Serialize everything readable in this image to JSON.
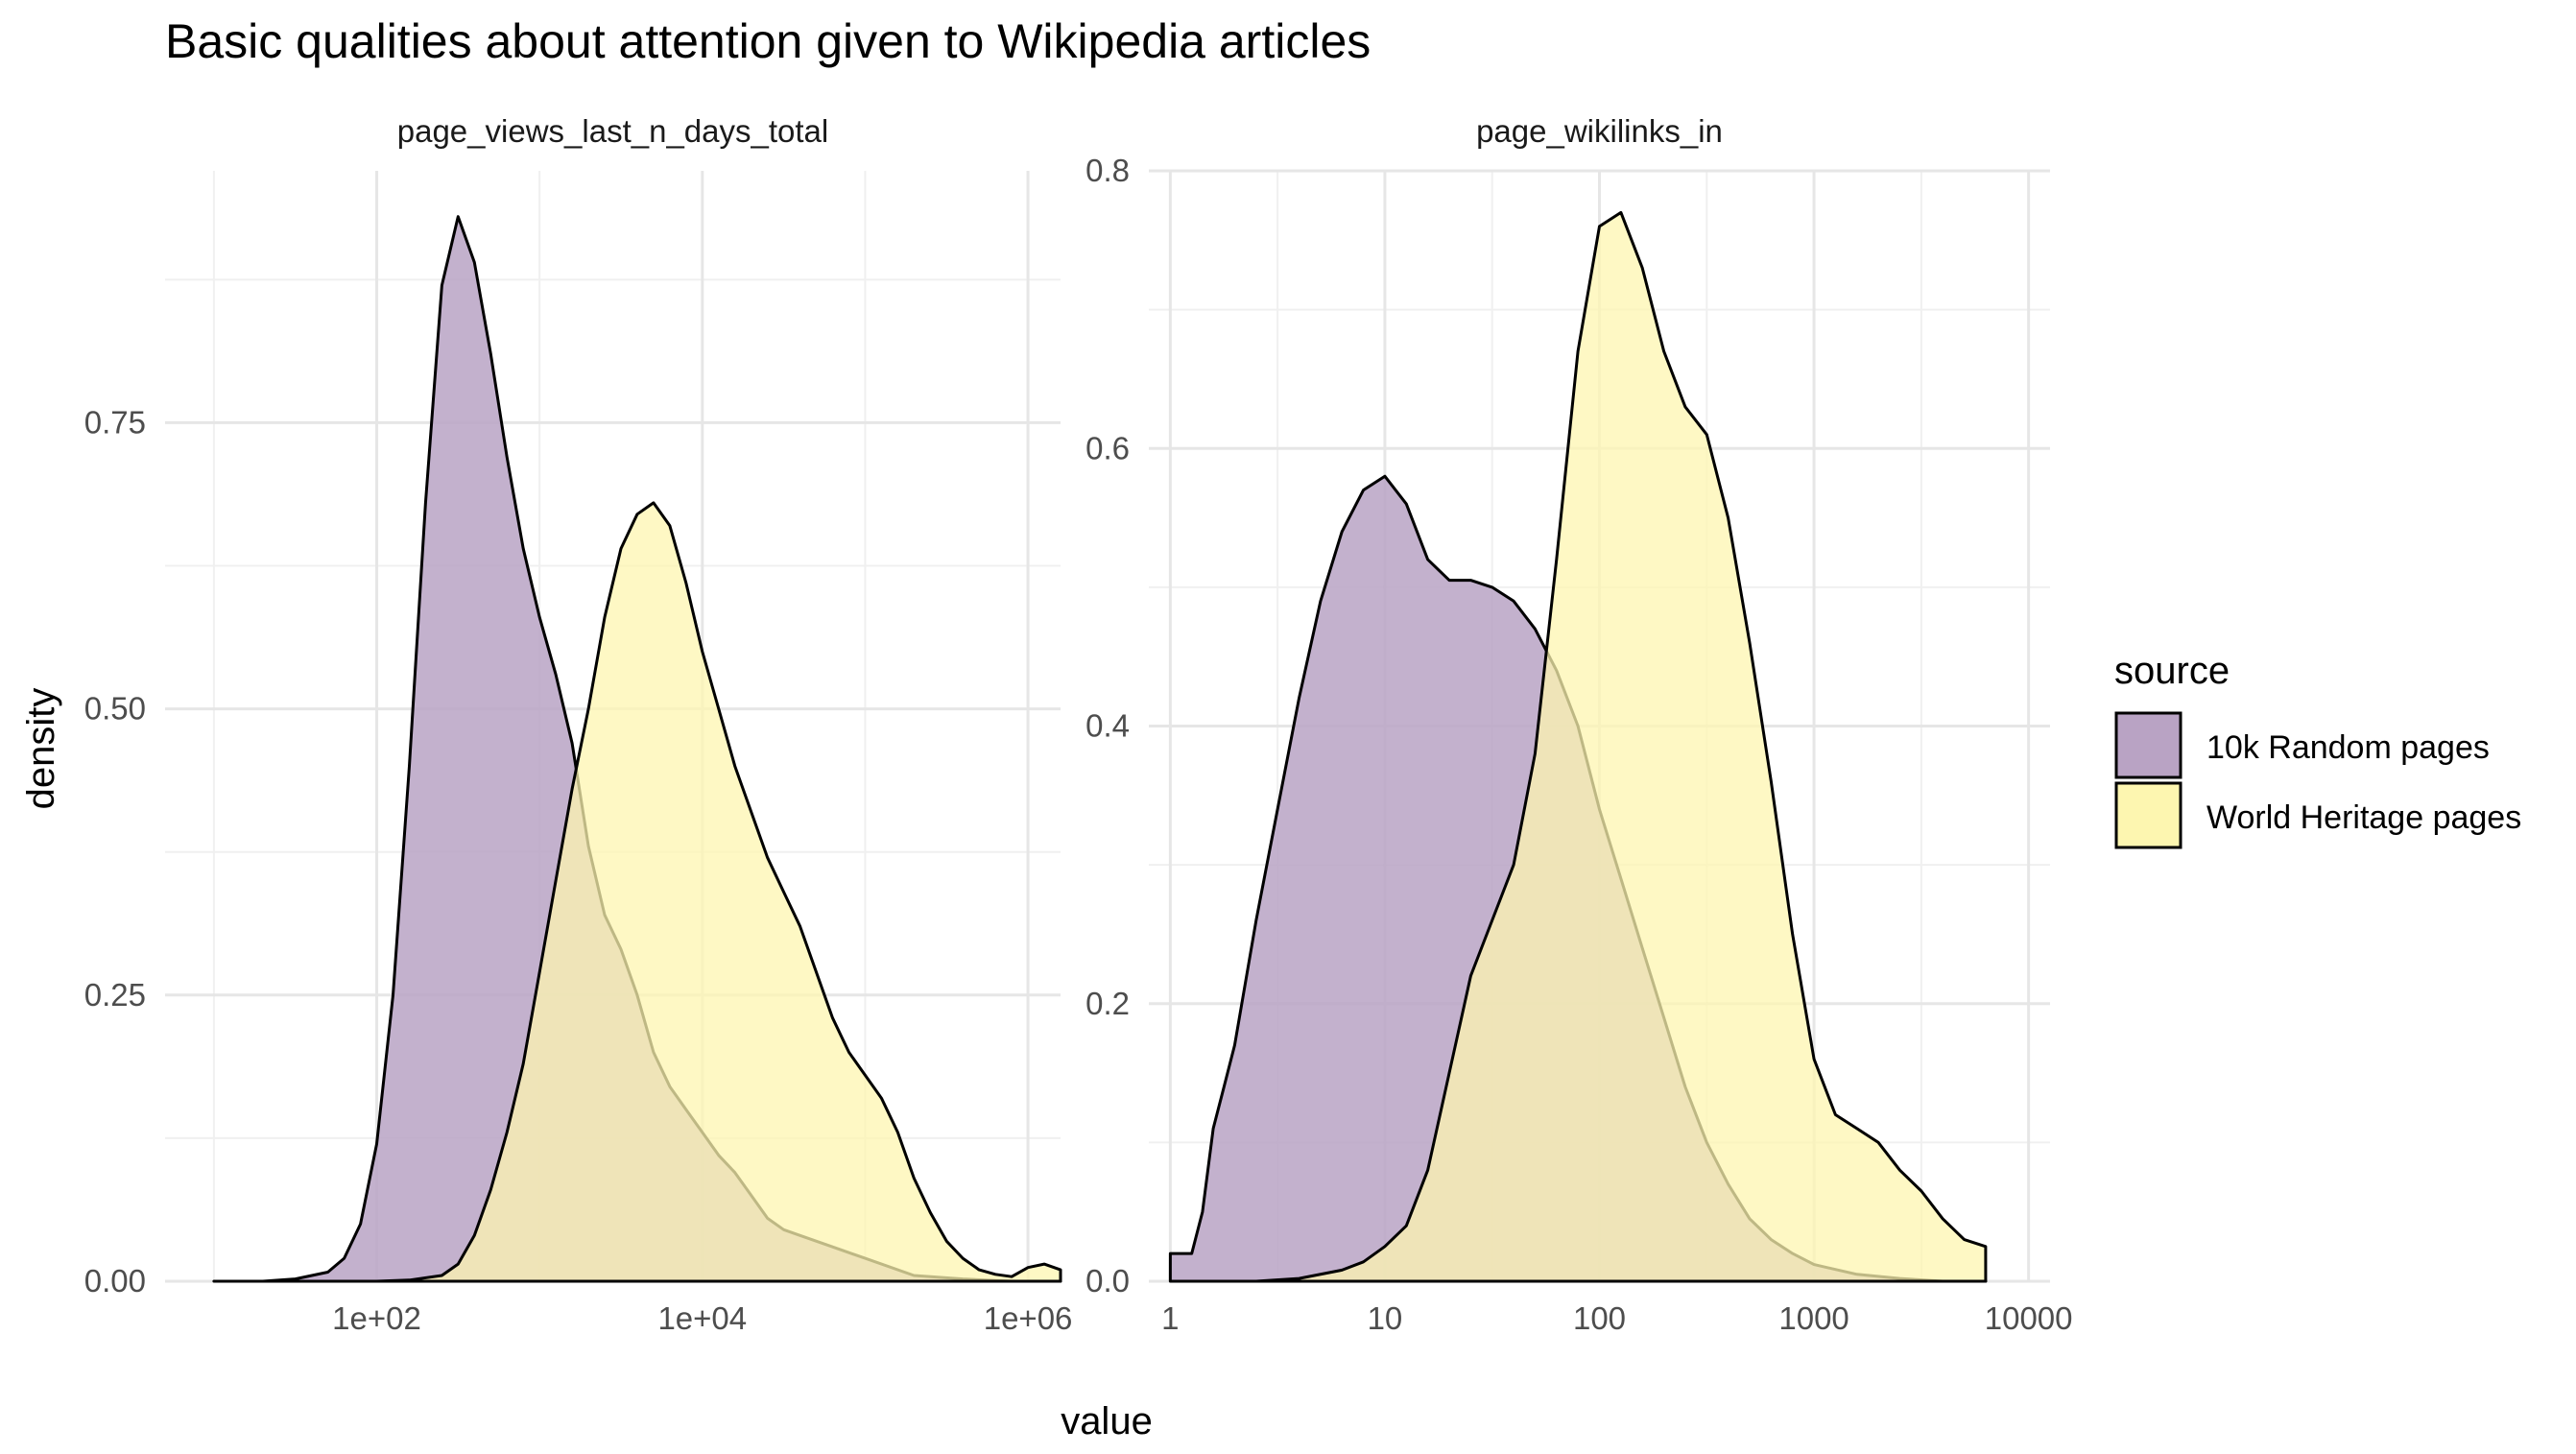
{
  "title": "Basic qualities about attention given to Wikipedia articles",
  "xlabel": "value",
  "ylabel": "density",
  "legend": {
    "title": "source",
    "items": [
      {
        "label": "10k Random pages",
        "color": "#b9a3c4"
      },
      {
        "label": "World Heritage pages",
        "color": "#fdf6b0"
      }
    ]
  },
  "chart_data": [
    {
      "type": "area",
      "subtitle": "page_views_last_n_days_total",
      "x_scale": "log10",
      "xlim": [
        0.7,
        6.2
      ],
      "ylim": [
        0,
        0.97
      ],
      "x_ticks": [
        {
          "value": 2,
          "label": "1e+02"
        },
        {
          "value": 4,
          "label": "1e+04"
        },
        {
          "value": 6,
          "label": "1e+06"
        }
      ],
      "y_ticks": [
        {
          "value": 0,
          "label": "0.00"
        },
        {
          "value": 0.25,
          "label": "0.25"
        },
        {
          "value": 0.5,
          "label": "0.50"
        },
        {
          "value": 0.75,
          "label": "0.75"
        }
      ],
      "series": [
        {
          "name": "10k Random pages",
          "color": "#b9a3c4",
          "log10_x": [
            1.0,
            1.3,
            1.5,
            1.7,
            1.8,
            1.9,
            2.0,
            2.1,
            2.2,
            2.3,
            2.4,
            2.5,
            2.6,
            2.7,
            2.8,
            2.9,
            3.0,
            3.1,
            3.2,
            3.3,
            3.4,
            3.5,
            3.6,
            3.7,
            3.8,
            3.9,
            4.0,
            4.1,
            4.2,
            4.3,
            4.4,
            4.5,
            4.6,
            4.8,
            5.0,
            5.3,
            5.6,
            5.9,
            6.2
          ],
          "y": [
            0.0,
            0.0,
            0.002,
            0.008,
            0.02,
            0.05,
            0.12,
            0.25,
            0.45,
            0.68,
            0.87,
            0.93,
            0.89,
            0.81,
            0.72,
            0.64,
            0.58,
            0.53,
            0.47,
            0.38,
            0.32,
            0.29,
            0.25,
            0.2,
            0.17,
            0.15,
            0.13,
            0.11,
            0.095,
            0.075,
            0.055,
            0.045,
            0.04,
            0.03,
            0.02,
            0.005,
            0.002,
            0.0,
            0.0
          ]
        },
        {
          "name": "World Heritage pages",
          "color": "#fdf6b0",
          "log10_x": [
            1.5,
            2.0,
            2.2,
            2.4,
            2.5,
            2.6,
            2.7,
            2.8,
            2.9,
            3.0,
            3.1,
            3.2,
            3.3,
            3.4,
            3.5,
            3.6,
            3.7,
            3.8,
            3.9,
            4.0,
            4.1,
            4.2,
            4.3,
            4.4,
            4.5,
            4.6,
            4.7,
            4.8,
            4.9,
            5.0,
            5.1,
            5.2,
            5.3,
            5.4,
            5.5,
            5.6,
            5.7,
            5.8,
            5.9,
            6.0,
            6.1,
            6.2
          ],
          "y": [
            0.0,
            0.0,
            0.001,
            0.005,
            0.015,
            0.04,
            0.08,
            0.13,
            0.19,
            0.27,
            0.35,
            0.43,
            0.5,
            0.58,
            0.64,
            0.67,
            0.68,
            0.66,
            0.61,
            0.55,
            0.5,
            0.45,
            0.41,
            0.37,
            0.34,
            0.31,
            0.27,
            0.23,
            0.2,
            0.18,
            0.16,
            0.13,
            0.09,
            0.06,
            0.035,
            0.02,
            0.01,
            0.006,
            0.004,
            0.012,
            0.015,
            0.01
          ]
        }
      ]
    },
    {
      "type": "area",
      "subtitle": "page_wikilinks_in",
      "x_scale": "log10",
      "xlim": [
        -0.1,
        4.1
      ],
      "ylim": [
        0,
        0.8
      ],
      "x_ticks": [
        {
          "value": 0,
          "label": "1"
        },
        {
          "value": 1,
          "label": "10"
        },
        {
          "value": 2,
          "label": "100"
        },
        {
          "value": 3,
          "label": "1000"
        },
        {
          "value": 4,
          "label": "10000"
        }
      ],
      "y_ticks": [
        {
          "value": 0,
          "label": "0.0"
        },
        {
          "value": 0.2,
          "label": "0.2"
        },
        {
          "value": 0.4,
          "label": "0.4"
        },
        {
          "value": 0.6,
          "label": "0.6"
        },
        {
          "value": 0.8,
          "label": "0.8"
        }
      ],
      "series": [
        {
          "name": "10k Random pages",
          "color": "#b9a3c4",
          "log10_x": [
            0.0,
            0.1,
            0.15,
            0.2,
            0.25,
            0.3,
            0.4,
            0.5,
            0.6,
            0.7,
            0.8,
            0.9,
            1.0,
            1.1,
            1.2,
            1.3,
            1.4,
            1.5,
            1.6,
            1.7,
            1.8,
            1.9,
            2.0,
            2.1,
            2.2,
            2.3,
            2.4,
            2.5,
            2.6,
            2.7,
            2.8,
            2.9,
            3.0,
            3.2,
            3.4,
            3.6,
            3.8
          ],
          "y": [
            0.02,
            0.02,
            0.05,
            0.11,
            0.14,
            0.17,
            0.26,
            0.34,
            0.42,
            0.49,
            0.54,
            0.57,
            0.58,
            0.56,
            0.52,
            0.505,
            0.505,
            0.5,
            0.49,
            0.47,
            0.44,
            0.4,
            0.34,
            0.29,
            0.24,
            0.19,
            0.14,
            0.1,
            0.07,
            0.045,
            0.03,
            0.02,
            0.012,
            0.005,
            0.002,
            0.0,
            0.0
          ]
        },
        {
          "name": "World Heritage pages",
          "color": "#fdf6b0",
          "log10_x": [
            0.4,
            0.6,
            0.8,
            0.9,
            1.0,
            1.1,
            1.2,
            1.3,
            1.4,
            1.5,
            1.6,
            1.7,
            1.8,
            1.9,
            2.0,
            2.1,
            2.2,
            2.3,
            2.4,
            2.5,
            2.6,
            2.7,
            2.8,
            2.9,
            3.0,
            3.1,
            3.2,
            3.3,
            3.4,
            3.5,
            3.6,
            3.7,
            3.8
          ],
          "y": [
            0.0,
            0.002,
            0.008,
            0.014,
            0.025,
            0.04,
            0.08,
            0.15,
            0.22,
            0.26,
            0.3,
            0.38,
            0.52,
            0.67,
            0.76,
            0.77,
            0.73,
            0.67,
            0.63,
            0.61,
            0.55,
            0.46,
            0.36,
            0.25,
            0.16,
            0.12,
            0.11,
            0.1,
            0.08,
            0.065,
            0.045,
            0.03,
            0.025
          ]
        }
      ]
    }
  ]
}
